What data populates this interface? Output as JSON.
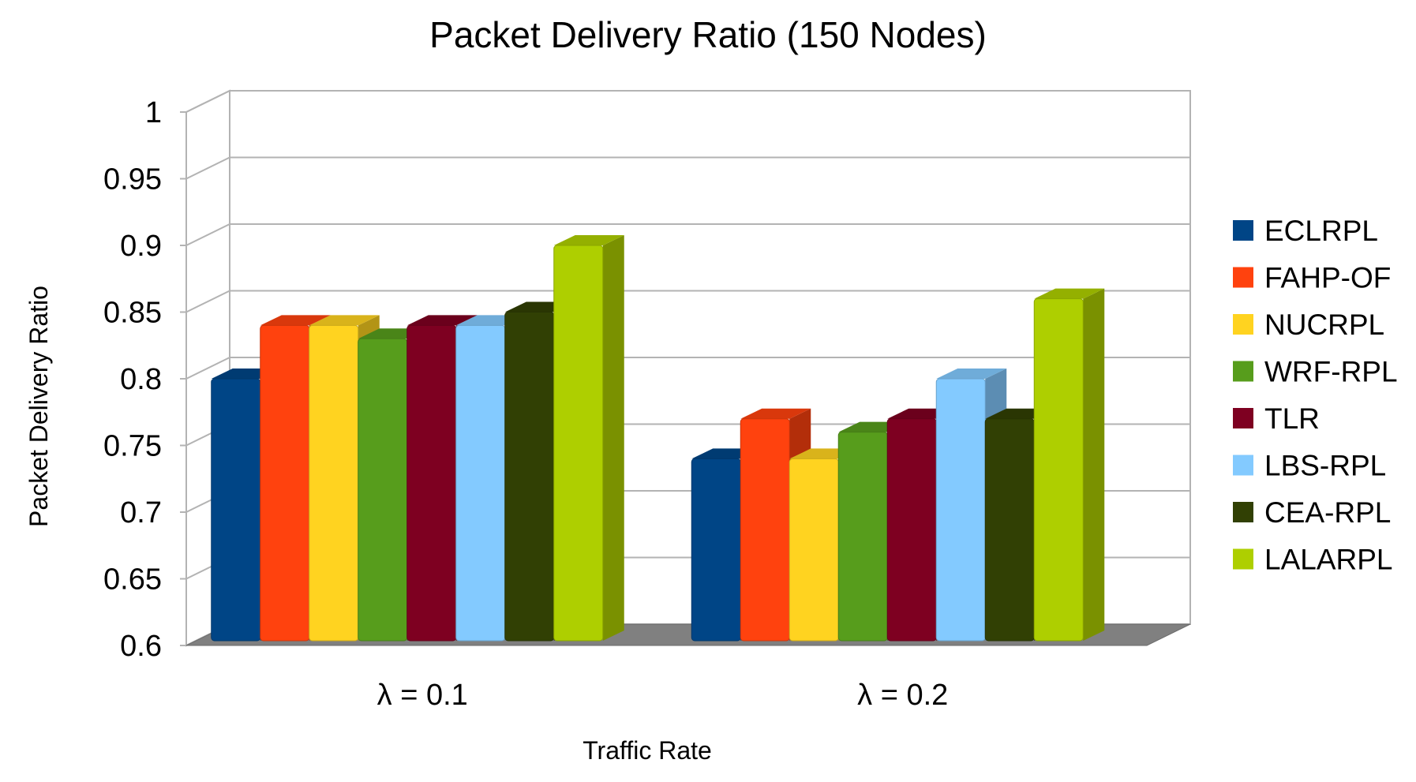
{
  "chart_data": {
    "type": "bar",
    "title": "Packet Delivery Ratio (150 Nodes)",
    "xlabel": "Traffic Rate",
    "ylabel": "Packet Delivery Ratio",
    "categories": [
      "λ = 0.1",
      "λ = 0.2"
    ],
    "ylim": [
      0.6,
      1
    ],
    "yticks": [
      0.6,
      0.65,
      0.7,
      0.75,
      0.8,
      0.85,
      0.9,
      0.95,
      1
    ],
    "ytick_labels": [
      "0.6",
      "0.65",
      "0.7",
      "0.75",
      "0.8",
      "0.85",
      "0.9",
      "0.95",
      "1"
    ],
    "grid": true,
    "style": "3d",
    "legend_position": "right",
    "series": [
      {
        "name": "ECLRPL",
        "values": [
          0.8,
          0.74
        ],
        "color": "#004586"
      },
      {
        "name": "FAHP-OF",
        "values": [
          0.84,
          0.77
        ],
        "color": "#ff420e"
      },
      {
        "name": "NUCRPL",
        "values": [
          0.84,
          0.74
        ],
        "color": "#ffd320"
      },
      {
        "name": "WRF-RPL",
        "values": [
          0.83,
          0.76
        ],
        "color": "#579d1c"
      },
      {
        "name": "TLR",
        "values": [
          0.84,
          0.77
        ],
        "color": "#7e0021"
      },
      {
        "name": "LBS-RPL",
        "values": [
          0.84,
          0.8
        ],
        "color": "#83caff"
      },
      {
        "name": "CEA-RPL",
        "values": [
          0.85,
          0.77
        ],
        "color": "#314004"
      },
      {
        "name": "LALARPL",
        "values": [
          0.9,
          0.86
        ],
        "color": "#aecf00"
      }
    ]
  }
}
